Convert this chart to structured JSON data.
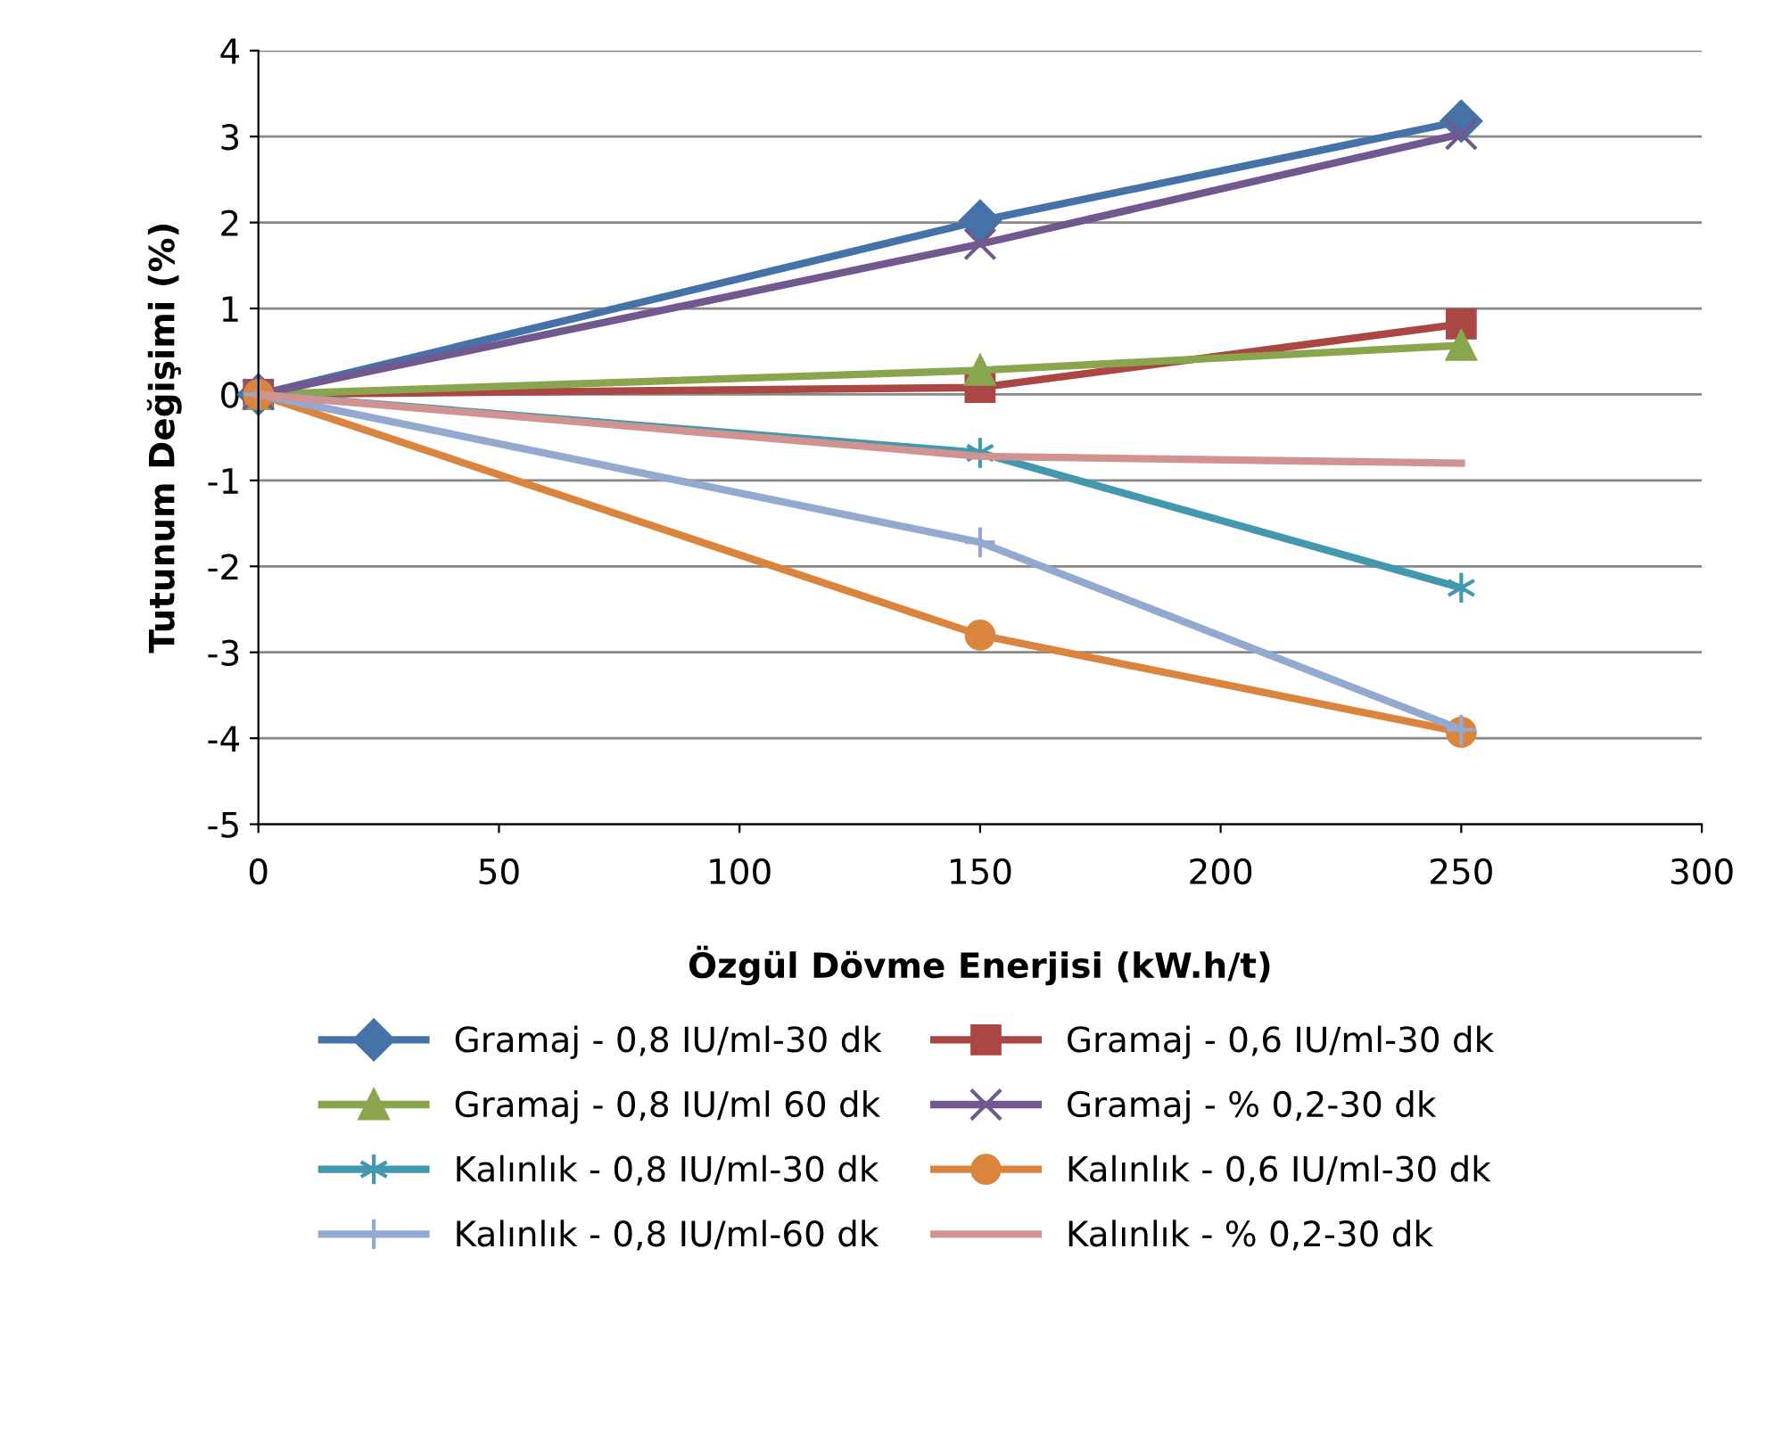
{
  "chart_data": {
    "type": "line",
    "xlabel": "Özgül Dövme Enerjisi (kW.h/t)",
    "ylabel": "Tutunum Değişimi (%)",
    "x": [
      0,
      150,
      250
    ],
    "xlim": [
      0,
      300
    ],
    "xticks": [
      0,
      50,
      100,
      150,
      200,
      250,
      300
    ],
    "ylim": [
      -5,
      4
    ],
    "yticks": [
      -5,
      -4,
      -3,
      -2,
      -1,
      0,
      1,
      2,
      3,
      4
    ],
    "grid": "y",
    "legend": "bottom",
    "line_style": "solid",
    "series": [
      {
        "name": "Gramaj - 0,8 IU/ml-30 dk",
        "color": "#4572a7",
        "marker": "diamond",
        "values": [
          0,
          2.02,
          3.18
        ]
      },
      {
        "name": "Gramaj - 0,6 IU/ml-30 dk",
        "color": "#aa4643",
        "marker": "square",
        "values": [
          0,
          0.08,
          0.82
        ]
      },
      {
        "name": "Gramaj - 0,8 IU/ml 60 dk",
        "color": "#89a54e",
        "marker": "triangle",
        "values": [
          0,
          0.28,
          0.57
        ]
      },
      {
        "name": "Gramaj - % 0,2-30 dk",
        "color": "#71588f",
        "marker": "cross",
        "values": [
          0,
          1.75,
          3.03
        ]
      },
      {
        "name": "Kalınlık - 0,8 IU/ml-30 dk",
        "color": "#4198af",
        "marker": "cross",
        "values": [
          0,
          -0.68,
          -2.25
        ]
      },
      {
        "name": "Kalınlık - 0,6 IU/ml-30 dk",
        "color": "#db843d",
        "marker": "circle",
        "values": [
          0,
          -2.8,
          -3.93
        ]
      },
      {
        "name": "Kalınlık - 0,8 IU/ml-60 dk",
        "color": "#93a9cf",
        "marker": "plus",
        "values": [
          0,
          -1.72,
          -3.9
        ]
      },
      {
        "name": "Kalınlık - % 0,2-30 dk",
        "color": "#d19392",
        "marker": "none",
        "values": [
          0,
          -0.72,
          -0.8
        ]
      }
    ]
  }
}
